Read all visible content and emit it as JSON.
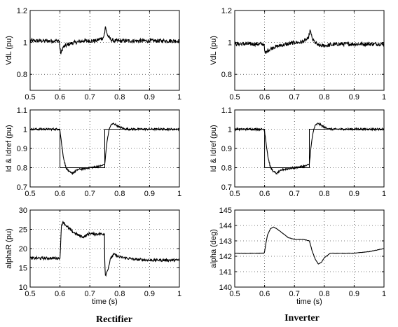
{
  "captions": {
    "left": "Rectifier",
    "right": "Inverter"
  },
  "chart_data": [
    {
      "type": "line",
      "column": "left",
      "row": 0,
      "xlabel": "",
      "ylabel": "VdL (pu)",
      "xlim": [
        0.5,
        1.0
      ],
      "ylim": [
        0.7,
        1.2
      ],
      "xticks": [
        0.5,
        0.6,
        0.7,
        0.8,
        0.9,
        1.0
      ],
      "xtick_labels": [
        "0.5",
        "0.6",
        "0.7",
        "0.8",
        "0.9",
        "1"
      ],
      "yticks": [
        0.8,
        1.0,
        1.2
      ],
      "ytick_labels": [
        "0.8",
        "1",
        "1.2"
      ],
      "grid": true,
      "series": [
        {
          "x": [
            0.5,
            0.55,
            0.598,
            0.6,
            0.603,
            0.61,
            0.63,
            0.65,
            0.68,
            0.7,
            0.72,
            0.745,
            0.75,
            0.752,
            0.756,
            0.76,
            0.77,
            0.78,
            0.8,
            0.85,
            0.9,
            0.95,
            1.0
          ],
          "y": [
            1.01,
            1.01,
            1.01,
            0.96,
            0.93,
            0.97,
            0.99,
            1.0,
            1.01,
            1.01,
            1.01,
            1.03,
            1.06,
            1.1,
            1.07,
            1.04,
            1.02,
            1.01,
            1.01,
            1.01,
            1.01,
            1.01,
            1.01
          ],
          "noise": 0.012
        }
      ]
    },
    {
      "type": "line",
      "column": "right",
      "row": 0,
      "xlabel": "",
      "ylabel": "VdL (pu)",
      "xlim": [
        0.5,
        1.0
      ],
      "ylim": [
        0.7,
        1.2
      ],
      "xticks": [
        0.5,
        0.6,
        0.7,
        0.8,
        0.9,
        1.0
      ],
      "xtick_labels": [
        "0.5",
        "0.6",
        "0.7",
        "0.8",
        "0.9",
        "1"
      ],
      "yticks": [
        0.8,
        1.0,
        1.2
      ],
      "ytick_labels": [
        "0.8",
        "1",
        "1.2"
      ],
      "grid": true,
      "series": [
        {
          "x": [
            0.5,
            0.55,
            0.598,
            0.6,
            0.603,
            0.61,
            0.63,
            0.65,
            0.68,
            0.7,
            0.72,
            0.745,
            0.75,
            0.752,
            0.756,
            0.76,
            0.77,
            0.78,
            0.8,
            0.85,
            0.9,
            0.95,
            1.0
          ],
          "y": [
            0.99,
            0.99,
            0.99,
            0.95,
            0.93,
            0.95,
            0.97,
            0.98,
            0.99,
            1.0,
            1.0,
            1.02,
            1.05,
            1.08,
            1.05,
            1.02,
            1.0,
            0.98,
            0.98,
            0.99,
            0.99,
            0.99,
            0.99
          ],
          "noise": 0.012
        }
      ]
    },
    {
      "type": "line",
      "column": "left",
      "row": 1,
      "xlabel": "",
      "ylabel": "Id & Idref (pu)",
      "xlim": [
        0.5,
        1.0
      ],
      "ylim": [
        0.7,
        1.1
      ],
      "xticks": [
        0.5,
        0.6,
        0.7,
        0.8,
        0.9,
        1.0
      ],
      "xtick_labels": [
        "0.5",
        "0.6",
        "0.7",
        "0.8",
        "0.9",
        "1"
      ],
      "yticks": [
        0.7,
        0.8,
        0.9,
        1.0,
        1.1
      ],
      "ytick_labels": [
        "0.7",
        "0.8",
        "0.9",
        "1",
        "1.1"
      ],
      "grid": true,
      "series": [
        {
          "x": [
            0.5,
            0.6,
            0.6,
            0.75,
            0.75,
            1.0
          ],
          "y": [
            1.0,
            1.0,
            0.8,
            0.8,
            1.0,
            1.0
          ],
          "noise": 0
        },
        {
          "x": [
            0.5,
            0.598,
            0.6,
            0.605,
            0.612,
            0.62,
            0.63,
            0.64,
            0.66,
            0.7,
            0.74,
            0.75,
            0.752,
            0.755,
            0.76,
            0.765,
            0.77,
            0.78,
            0.79,
            0.8,
            0.82,
            0.85,
            0.9,
            1.0
          ],
          "y": [
            1.0,
            1.0,
            0.99,
            0.93,
            0.85,
            0.8,
            0.78,
            0.77,
            0.79,
            0.8,
            0.81,
            0.82,
            0.85,
            0.9,
            0.96,
            1.0,
            1.02,
            1.03,
            1.02,
            1.01,
            1.0,
            1.0,
            1.0,
            1.0
          ],
          "noise": 0.005
        }
      ]
    },
    {
      "type": "line",
      "column": "right",
      "row": 1,
      "xlabel": "",
      "ylabel": "Id & Idref (pu)",
      "xlim": [
        0.5,
        1.0
      ],
      "ylim": [
        0.7,
        1.1
      ],
      "xticks": [
        0.5,
        0.6,
        0.7,
        0.8,
        0.9,
        1.0
      ],
      "xtick_labels": [
        "0.5",
        "0.6",
        "0.7",
        "0.8",
        "0.9",
        "1"
      ],
      "yticks": [
        0.7,
        0.8,
        0.9,
        1.0,
        1.1
      ],
      "ytick_labels": [
        "0.7",
        "0.8",
        "0.9",
        "1",
        "1.1"
      ],
      "grid": true,
      "series": [
        {
          "x": [
            0.5,
            0.6,
            0.6,
            0.75,
            0.75,
            1.0
          ],
          "y": [
            1.0,
            1.0,
            0.8,
            0.8,
            1.0,
            1.0
          ],
          "noise": 0
        },
        {
          "x": [
            0.5,
            0.598,
            0.6,
            0.605,
            0.612,
            0.62,
            0.63,
            0.64,
            0.66,
            0.7,
            0.74,
            0.75,
            0.752,
            0.755,
            0.76,
            0.765,
            0.77,
            0.78,
            0.79,
            0.8,
            0.82,
            0.85,
            0.9,
            1.0
          ],
          "y": [
            1.0,
            1.0,
            0.99,
            0.93,
            0.85,
            0.8,
            0.78,
            0.77,
            0.79,
            0.8,
            0.81,
            0.82,
            0.85,
            0.9,
            0.96,
            1.0,
            1.02,
            1.03,
            1.02,
            1.01,
            1.0,
            1.0,
            1.0,
            1.0
          ],
          "noise": 0.005
        }
      ]
    },
    {
      "type": "line",
      "column": "left",
      "row": 2,
      "xlabel": "time (s)",
      "ylabel": "alphaR (pu)",
      "xlim": [
        0.5,
        1.0
      ],
      "ylim": [
        10,
        30
      ],
      "xticks": [
        0.5,
        0.6,
        0.7,
        0.8,
        0.9,
        1.0
      ],
      "xtick_labels": [
        "0.5",
        "0.6",
        "0.7",
        "0.8",
        "0.9",
        "1"
      ],
      "yticks": [
        10,
        15,
        20,
        25,
        30
      ],
      "ytick_labels": [
        "10",
        "15",
        "20",
        "25",
        "30"
      ],
      "grid": true,
      "series": [
        {
          "x": [
            0.5,
            0.599,
            0.6,
            0.605,
            0.61,
            0.62,
            0.64,
            0.66,
            0.68,
            0.69,
            0.7,
            0.71,
            0.73,
            0.749,
            0.75,
            0.752,
            0.755,
            0.76,
            0.77,
            0.78,
            0.8,
            0.85,
            0.9,
            1.0
          ],
          "y": [
            17.5,
            17.5,
            17.5,
            26.0,
            27.0,
            26.0,
            24.5,
            23.5,
            23.0,
            23.5,
            24.0,
            23.8,
            23.8,
            23.8,
            17.0,
            13.0,
            13.5,
            14.5,
            17.5,
            18.5,
            17.8,
            17.2,
            17.0,
            17.0
          ],
          "noise": 0.35
        }
      ]
    },
    {
      "type": "line",
      "column": "right",
      "row": 2,
      "xlabel": "time (s)",
      "ylabel": "alpha (deg)",
      "xlim": [
        0.5,
        1.0
      ],
      "ylim": [
        140,
        145
      ],
      "xticks": [
        0.5,
        0.6,
        0.7,
        0.8,
        0.9,
        1.0
      ],
      "xtick_labels": [
        "0.5",
        "0.6",
        "0.7",
        "0.8",
        "0.9",
        "1"
      ],
      "yticks": [
        140,
        141,
        142,
        143,
        144,
        145
      ],
      "ytick_labels": [
        "140",
        "141",
        "142",
        "143",
        "144",
        "145"
      ],
      "grid": true,
      "series": [
        {
          "x": [
            0.5,
            0.598,
            0.6,
            0.605,
            0.61,
            0.62,
            0.63,
            0.64,
            0.66,
            0.68,
            0.7,
            0.73,
            0.75,
            0.76,
            0.77,
            0.78,
            0.79,
            0.8,
            0.82,
            0.85,
            0.9,
            0.95,
            1.0
          ],
          "y": [
            142.2,
            142.2,
            142.3,
            142.9,
            143.4,
            143.8,
            143.9,
            143.8,
            143.5,
            143.2,
            143.1,
            143.1,
            143.0,
            142.3,
            141.8,
            141.5,
            141.6,
            141.9,
            142.2,
            142.2,
            142.2,
            142.3,
            142.5
          ],
          "noise": 0.01
        }
      ]
    }
  ]
}
